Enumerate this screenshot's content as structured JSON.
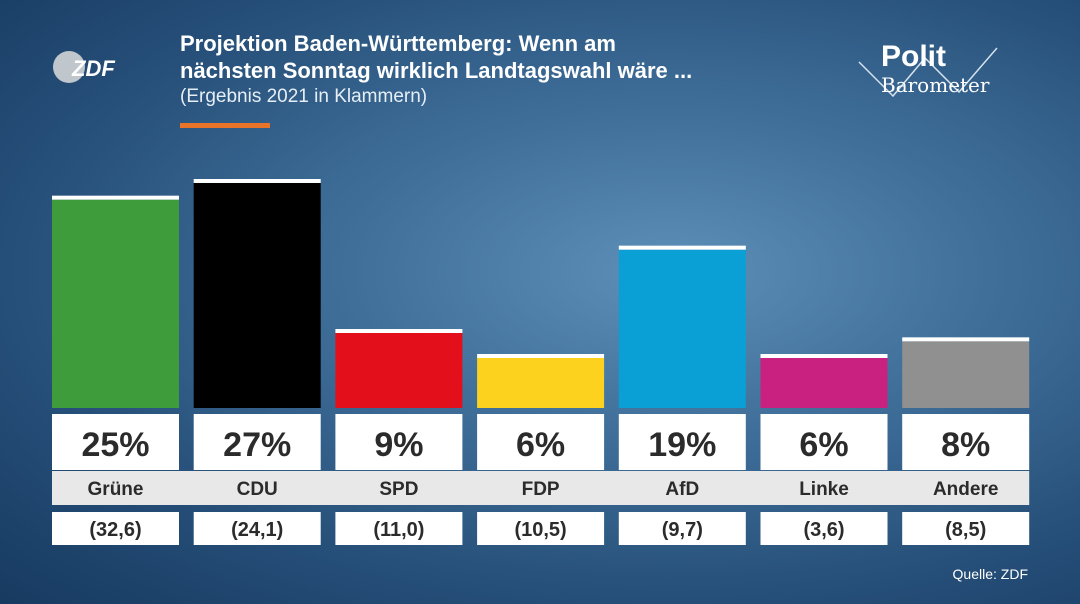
{
  "header": {
    "title_line1": "Projektion Baden-Württemberg: Wenn am",
    "title_line2": "nächsten Sonntag wirklich Landtagswahl wäre ...",
    "subtitle": "(Ergebnis 2021 in Klammern)"
  },
  "logos": {
    "broadcaster": "ZDF",
    "show_word1": "Polit",
    "show_word2": "Barometer"
  },
  "source": "Quelle: ZDF",
  "chart_data": {
    "type": "bar",
    "categories": [
      "Grüne",
      "CDU",
      "SPD",
      "FDP",
      "AfD",
      "Linke",
      "Andere"
    ],
    "values": [
      25,
      27,
      9,
      6,
      19,
      6,
      8
    ],
    "value_labels": [
      "25%",
      "27%",
      "9%",
      "6%",
      "19%",
      "6%",
      "8%"
    ],
    "previous_labels": [
      "(32,6)",
      "(24,1)",
      "(11,0)",
      "(10,5)",
      "(9,7)",
      "(3,6)",
      "(8,5)"
    ],
    "colors": [
      "#3e9c3a",
      "#000000",
      "#e3101b",
      "#fcd21e",
      "#0ba0d5",
      "#c8217f",
      "#909090"
    ],
    "ylim": [
      0,
      27
    ]
  }
}
